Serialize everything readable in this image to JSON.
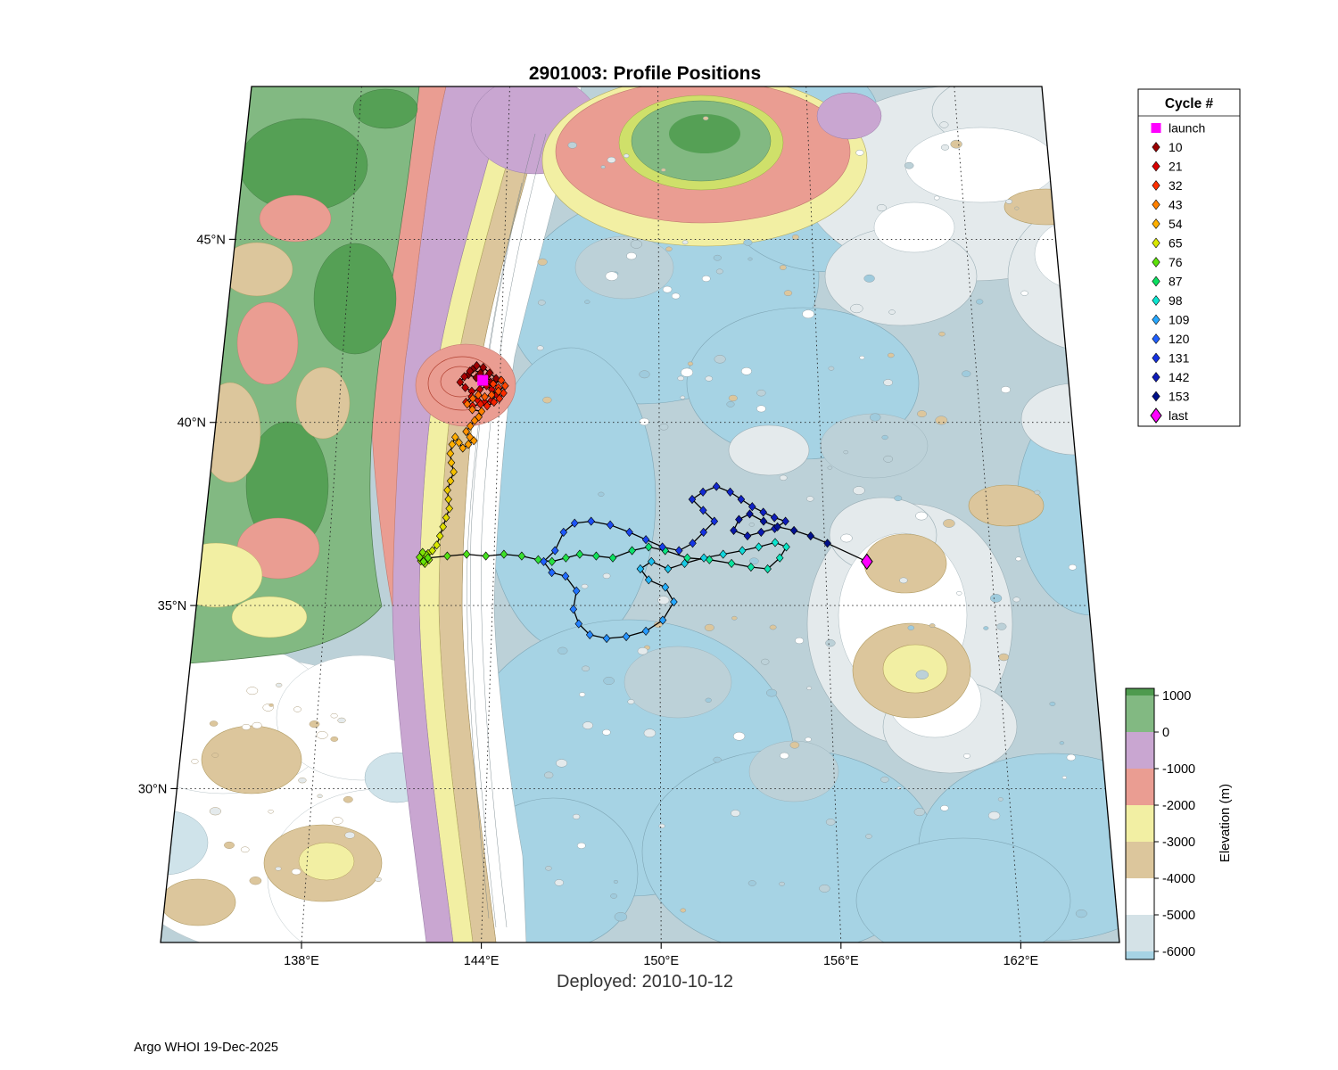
{
  "title": "2901003: Profile Positions",
  "deployed_label": "Deployed: 2010-10-12",
  "credit": "Argo WHOI 19-Dec-2025",
  "legend": {
    "title": "Cycle #",
    "launch": {
      "label": "launch",
      "color": "#ff00ff"
    },
    "cycles": [
      {
        "label": "10",
        "value": 10
      },
      {
        "label": "21",
        "value": 21
      },
      {
        "label": "32",
        "value": 32
      },
      {
        "label": "43",
        "value": 43
      },
      {
        "label": "54",
        "value": 54
      },
      {
        "label": "65",
        "value": 65
      },
      {
        "label": "76",
        "value": 76
      },
      {
        "label": "87",
        "value": 87
      },
      {
        "label": "98",
        "value": 98
      },
      {
        "label": "109",
        "value": 109
      },
      {
        "label": "120",
        "value": 120
      },
      {
        "label": "131",
        "value": 131
      },
      {
        "label": "142",
        "value": 142
      },
      {
        "label": "153",
        "value": 153
      }
    ],
    "last": {
      "label": "last",
      "color": "#ff00ff"
    }
  },
  "colorbar": {
    "label": "Elevation (m)",
    "ticks": [
      "1000",
      "0",
      "-1000",
      "-2000",
      "-3000",
      "-4000",
      "-5000",
      "-6000"
    ],
    "segments": [
      {
        "range": "above 1000",
        "color": "#4e9a4e"
      },
      {
        "range": "0 to 1000",
        "color": "#82b982"
      },
      {
        "range": "-1000 to 0",
        "color": "#c9a6d1"
      },
      {
        "range": "-2000 to -1000",
        "color": "#ea9d92"
      },
      {
        "range": "-3000 to -2000",
        "color": "#f2efa3"
      },
      {
        "range": "-4000 to -3000",
        "color": "#dcc69c"
      },
      {
        "range": "-5000 to -4000",
        "color": "#ffffff"
      },
      {
        "range": "-6000 to -5000",
        "color": "#d4e2e7"
      },
      {
        "range": "below -6000",
        "color": "#a6d3e4"
      }
    ]
  },
  "axes": {
    "x_ticks": [
      {
        "label": "138°E",
        "lon": 138
      },
      {
        "label": "144°E",
        "lon": 144
      },
      {
        "label": "150°E",
        "lon": 150
      },
      {
        "label": "156°E",
        "lon": 156
      },
      {
        "label": "162°E",
        "lon": 162
      }
    ],
    "y_ticks": [
      {
        "label": "30°N",
        "lat": 30
      },
      {
        "label": "35°N",
        "lat": 35
      },
      {
        "label": "40°N",
        "lat": 40
      },
      {
        "label": "45°N",
        "lat": 45
      }
    ]
  },
  "chart_data": {
    "type": "scatter",
    "float_id": "2901003",
    "deployed_date": "2010-10-12",
    "lon_range": [
      133.4,
      165.4
    ],
    "lat_range": [
      25.8,
      49.1
    ],
    "launch": [
      143.35,
      41.15
    ],
    "last": [
      157.5,
      36.2
    ],
    "color_anchors": [
      [
        1,
        "#7f0000"
      ],
      [
        10,
        "#990000"
      ],
      [
        21,
        "#d80000"
      ],
      [
        32,
        "#ff3000"
      ],
      [
        43,
        "#ff8000"
      ],
      [
        54,
        "#ffb000"
      ],
      [
        65,
        "#d8e800"
      ],
      [
        76,
        "#5ce00a"
      ],
      [
        87,
        "#0ae060"
      ],
      [
        98,
        "#0ce6d0"
      ],
      [
        109,
        "#28a8ff"
      ],
      [
        120,
        "#2060ff"
      ],
      [
        131,
        "#1532e0"
      ],
      [
        142,
        "#0e1cb8"
      ],
      [
        153,
        "#001088"
      ]
    ],
    "track": [
      [
        1,
        143.3,
        41.1
      ],
      [
        2,
        143.1,
        41.22
      ],
      [
        3,
        142.8,
        41.3
      ],
      [
        4,
        142.95,
        41.45
      ],
      [
        5,
        143.25,
        41.35
      ],
      [
        6,
        143.5,
        41.25
      ],
      [
        7,
        143.65,
        41.1
      ],
      [
        8,
        143.85,
        41.2
      ],
      [
        9,
        143.6,
        41.35
      ],
      [
        10,
        143.35,
        41.5
      ],
      [
        11,
        143.1,
        41.55
      ],
      [
        12,
        142.85,
        41.4
      ],
      [
        13,
        142.65,
        41.25
      ],
      [
        14,
        142.5,
        41.1
      ],
      [
        15,
        142.7,
        40.95
      ],
      [
        16,
        142.95,
        40.85
      ],
      [
        17,
        143.25,
        40.9
      ],
      [
        18,
        143.5,
        41.0
      ],
      [
        19,
        143.7,
        40.9
      ],
      [
        20,
        143.9,
        40.75
      ],
      [
        21,
        143.7,
        40.6
      ],
      [
        22,
        143.45,
        40.55
      ],
      [
        23,
        143.2,
        40.6
      ],
      [
        24,
        142.95,
        40.7
      ],
      [
        25,
        142.75,
        40.55
      ],
      [
        26,
        143.0,
        40.45
      ],
      [
        27,
        143.3,
        40.5
      ],
      [
        28,
        143.55,
        40.45
      ],
      [
        29,
        143.8,
        40.55
      ],
      [
        30,
        144.0,
        40.65
      ],
      [
        31,
        144.15,
        40.8
      ],
      [
        32,
        143.95,
        40.95
      ],
      [
        33,
        143.75,
        41.05
      ],
      [
        34,
        144.05,
        41.15
      ],
      [
        35,
        144.2,
        41.0
      ],
      [
        36,
        143.95,
        40.85
      ],
      [
        37,
        143.7,
        40.75
      ],
      [
        38,
        143.45,
        40.7
      ],
      [
        39,
        143.2,
        40.75
      ],
      [
        40,
        143.0,
        40.65
      ],
      [
        41,
        142.8,
        40.5
      ],
      [
        42,
        143.0,
        40.35
      ],
      [
        43,
        143.35,
        40.3
      ],
      [
        44,
        143.25,
        40.15
      ],
      [
        45,
        143.1,
        40.05
      ],
      [
        46,
        142.95,
        39.9
      ],
      [
        47,
        142.8,
        39.75
      ],
      [
        48,
        142.95,
        39.6
      ],
      [
        49,
        143.1,
        39.5
      ],
      [
        50,
        142.9,
        39.4
      ],
      [
        51,
        142.7,
        39.3
      ],
      [
        52,
        142.55,
        39.45
      ],
      [
        53,
        142.4,
        39.6
      ],
      [
        54,
        142.3,
        39.4
      ],
      [
        55,
        142.25,
        39.15
      ],
      [
        56,
        142.3,
        38.9
      ],
      [
        57,
        142.4,
        38.65
      ],
      [
        58,
        142.3,
        38.4
      ],
      [
        59,
        142.2,
        38.15
      ],
      [
        60,
        142.25,
        37.9
      ],
      [
        61,
        142.3,
        37.65
      ],
      [
        62,
        142.2,
        37.4
      ],
      [
        63,
        142.1,
        37.15
      ],
      [
        64,
        142.0,
        36.9
      ],
      [
        65,
        141.9,
        36.65
      ],
      [
        66,
        141.75,
        36.5
      ],
      [
        67,
        141.6,
        36.42
      ],
      [
        68,
        141.45,
        36.32
      ],
      [
        69,
        141.35,
        36.22
      ],
      [
        70,
        141.5,
        36.15
      ],
      [
        71,
        141.65,
        36.25
      ],
      [
        72,
        141.55,
        36.38
      ],
      [
        73,
        141.4,
        36.45
      ],
      [
        74,
        141.3,
        36.32
      ],
      [
        75,
        141.45,
        36.2
      ],
      [
        76,
        141.6,
        36.3
      ],
      [
        77,
        142.3,
        36.35
      ],
      [
        78,
        143.0,
        36.4
      ],
      [
        79,
        143.7,
        36.35
      ],
      [
        80,
        144.35,
        36.4
      ],
      [
        81,
        145.0,
        36.35
      ],
      [
        82,
        145.6,
        36.25
      ],
      [
        83,
        146.1,
        36.2
      ],
      [
        84,
        146.6,
        36.3
      ],
      [
        85,
        147.1,
        36.4
      ],
      [
        86,
        147.7,
        36.35
      ],
      [
        87,
        148.3,
        36.3
      ],
      [
        88,
        149.0,
        36.5
      ],
      [
        89,
        149.6,
        36.6
      ],
      [
        90,
        150.2,
        36.5
      ],
      [
        91,
        151.0,
        36.3
      ],
      [
        92,
        151.8,
        36.25
      ],
      [
        93,
        152.6,
        36.15
      ],
      [
        94,
        153.3,
        36.05
      ],
      [
        95,
        153.9,
        36.0
      ],
      [
        96,
        154.35,
        36.3
      ],
      [
        97,
        154.6,
        36.6
      ],
      [
        98,
        154.2,
        36.72
      ],
      [
        99,
        153.6,
        36.6
      ],
      [
        100,
        153.0,
        36.5
      ],
      [
        101,
        152.3,
        36.4
      ],
      [
        102,
        151.6,
        36.3
      ],
      [
        103,
        150.9,
        36.15
      ],
      [
        104,
        150.3,
        36.0
      ],
      [
        105,
        149.7,
        36.2
      ],
      [
        106,
        149.3,
        36.0
      ],
      [
        107,
        149.6,
        35.7
      ],
      [
        108,
        150.2,
        35.5
      ],
      [
        109,
        150.5,
        35.1
      ],
      [
        110,
        150.1,
        34.6
      ],
      [
        111,
        149.5,
        34.3
      ],
      [
        112,
        148.8,
        34.15
      ],
      [
        113,
        148.1,
        34.1
      ],
      [
        114,
        147.5,
        34.2
      ],
      [
        115,
        147.1,
        34.5
      ],
      [
        116,
        146.9,
        34.9
      ],
      [
        117,
        147.0,
        35.4
      ],
      [
        118,
        146.6,
        35.8
      ],
      [
        119,
        146.1,
        35.9
      ],
      [
        120,
        145.8,
        36.2
      ],
      [
        121,
        146.2,
        36.5
      ],
      [
        122,
        146.5,
        37.0
      ],
      [
        123,
        146.9,
        37.25
      ],
      [
        124,
        147.5,
        37.3
      ],
      [
        125,
        148.2,
        37.2
      ],
      [
        126,
        148.9,
        37.0
      ],
      [
        127,
        149.5,
        36.8
      ],
      [
        128,
        150.1,
        36.6
      ],
      [
        129,
        150.7,
        36.5
      ],
      [
        130,
        151.2,
        36.7
      ],
      [
        131,
        151.6,
        37.0
      ],
      [
        132,
        152.0,
        37.3
      ],
      [
        133,
        151.6,
        37.6
      ],
      [
        134,
        151.2,
        37.9
      ],
      [
        135,
        151.6,
        38.1
      ],
      [
        136,
        152.1,
        38.25
      ],
      [
        137,
        152.6,
        38.1
      ],
      [
        138,
        153.0,
        37.9
      ],
      [
        139,
        153.4,
        37.7
      ],
      [
        140,
        153.8,
        37.55
      ],
      [
        141,
        154.2,
        37.4
      ],
      [
        142,
        154.6,
        37.3
      ],
      [
        143,
        154.2,
        37.1
      ],
      [
        144,
        153.7,
        37.0
      ],
      [
        145,
        153.2,
        36.9
      ],
      [
        146,
        152.7,
        37.05
      ],
      [
        147,
        152.9,
        37.35
      ],
      [
        148,
        153.3,
        37.5
      ],
      [
        149,
        153.8,
        37.3
      ],
      [
        150,
        154.3,
        37.15
      ],
      [
        151,
        154.9,
        37.05
      ],
      [
        152,
        155.5,
        36.9
      ],
      [
        153,
        156.1,
        36.7
      ]
    ]
  }
}
